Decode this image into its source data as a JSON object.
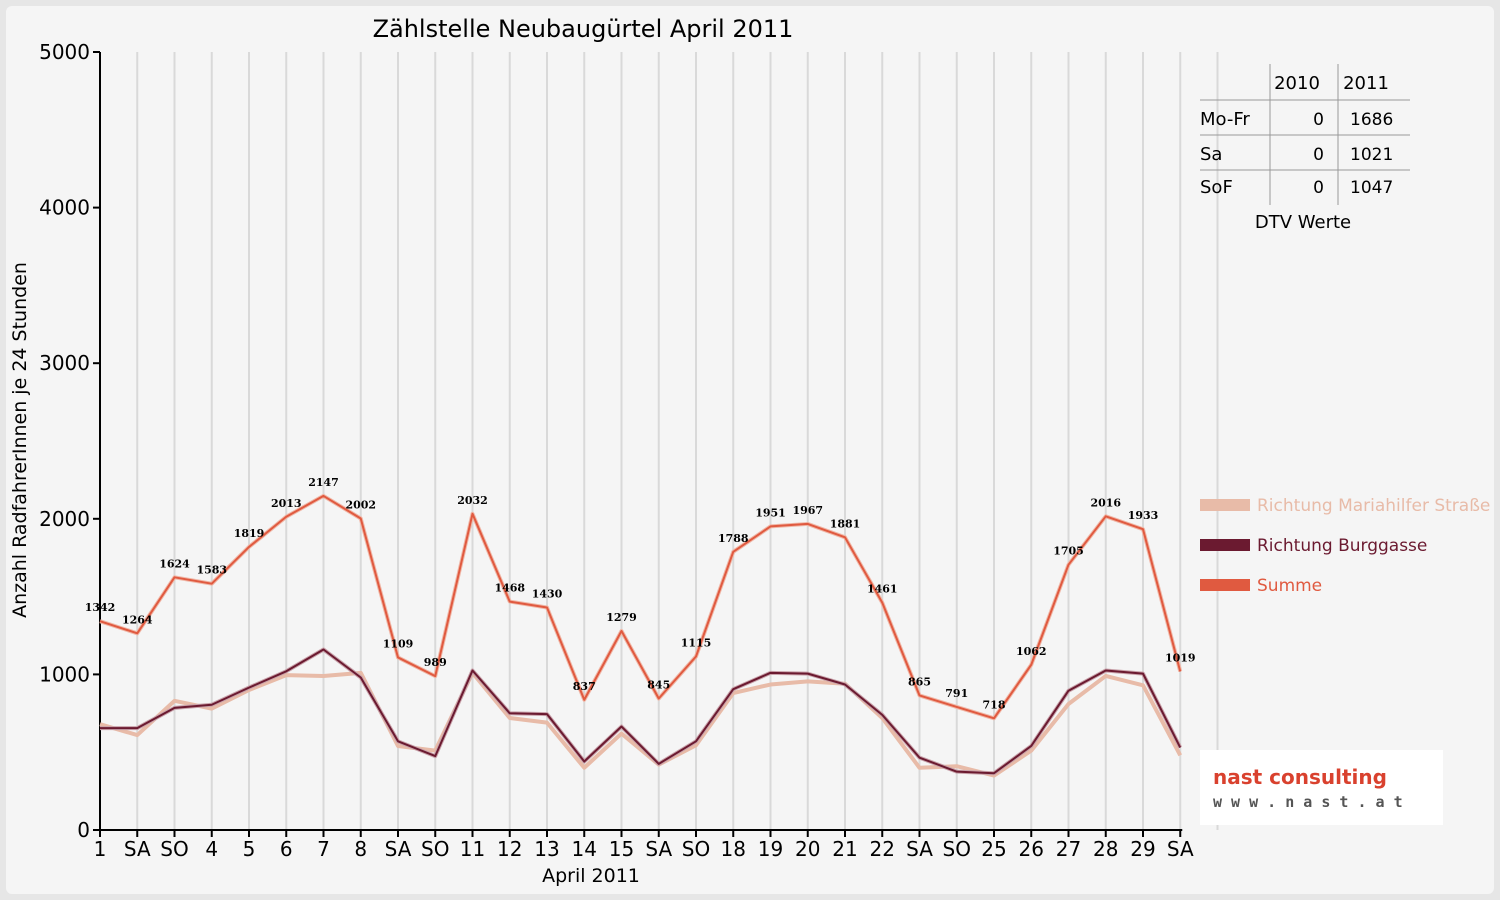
{
  "chart_data": {
    "type": "line",
    "title": "Zählstelle Neubaugürtel April 2011",
    "xlabel": "April 2011",
    "ylabel": "Anzahl RadfahrerInnen je 24 Stunden",
    "ylim": [
      0,
      5000
    ],
    "yticks": [
      "0",
      "1000",
      "2000",
      "3000",
      "4000",
      "5000"
    ],
    "grid": true,
    "legend_position": "right",
    "categories": [
      "1",
      "SA",
      "SO",
      "4",
      "5",
      "6",
      "7",
      "8",
      "SA",
      "SO",
      "11",
      "12",
      "13",
      "14",
      "15",
      "SA",
      "SO",
      "18",
      "19",
      "20",
      "21",
      "22",
      "SA",
      "SO",
      "25",
      "26",
      "27",
      "28",
      "29",
      "SA"
    ],
    "red_categories": [
      2,
      9,
      16,
      23,
      24
    ],
    "series": [
      {
        "name": "Richtung Mariahilfer Straße",
        "color": "#e8bba8",
        "values": [
          680,
          610,
          830,
          780,
          900,
          995,
          990,
          1010,
          540,
          510,
          1010,
          720,
          690,
          400,
          620,
          420,
          545,
          880,
          935,
          955,
          940,
          720,
          400,
          410,
          350,
          510,
          810,
          990,
          930,
          480
        ]
      },
      {
        "name": "Richtung Burggasse",
        "color": "#6b1a30",
        "values": [
          655,
          655,
          785,
          805,
          915,
          1020,
          1160,
          980,
          570,
          475,
          1025,
          750,
          745,
          440,
          665,
          425,
          570,
          905,
          1010,
          1005,
          935,
          740,
          465,
          375,
          365,
          540,
          895,
          1025,
          1005,
          530
        ]
      },
      {
        "name": "Summe",
        "color": "#e05a40",
        "values": [
          1342,
          1264,
          1624,
          1583,
          1819,
          2013,
          2147,
          2002,
          1109,
          989,
          2032,
          1468,
          1430,
          837,
          1279,
          845,
          1115,
          1788,
          1951,
          1967,
          1881,
          1461,
          865,
          791,
          718,
          1062,
          1705,
          2016,
          1933,
          1019
        ]
      }
    ],
    "data_labels": [
      1342,
      1264,
      1624,
      1583,
      1819,
      2013,
      2147,
      2002,
      1109,
      989,
      2032,
      1468,
      1430,
      837,
      1279,
      845,
      1115,
      1788,
      1951,
      1967,
      1881,
      1461,
      865,
      791,
      718,
      1062,
      1705,
      2016,
      1933,
      1019
    ],
    "dtv_table": {
      "headers": [
        "",
        "2010",
        "2011"
      ],
      "rows": [
        {
          "label": "Mo-Fr",
          "v2010": "0",
          "v2011": "1686"
        },
        {
          "label": "Sa",
          "v2010": "0",
          "v2011": "1021"
        },
        {
          "label": "SoF",
          "v2010": "0",
          "v2011": "1047"
        }
      ],
      "caption": "DTV Werte"
    }
  },
  "logo": {
    "line1": "nast consulting",
    "line2": "w w w . n a s t . a t"
  }
}
